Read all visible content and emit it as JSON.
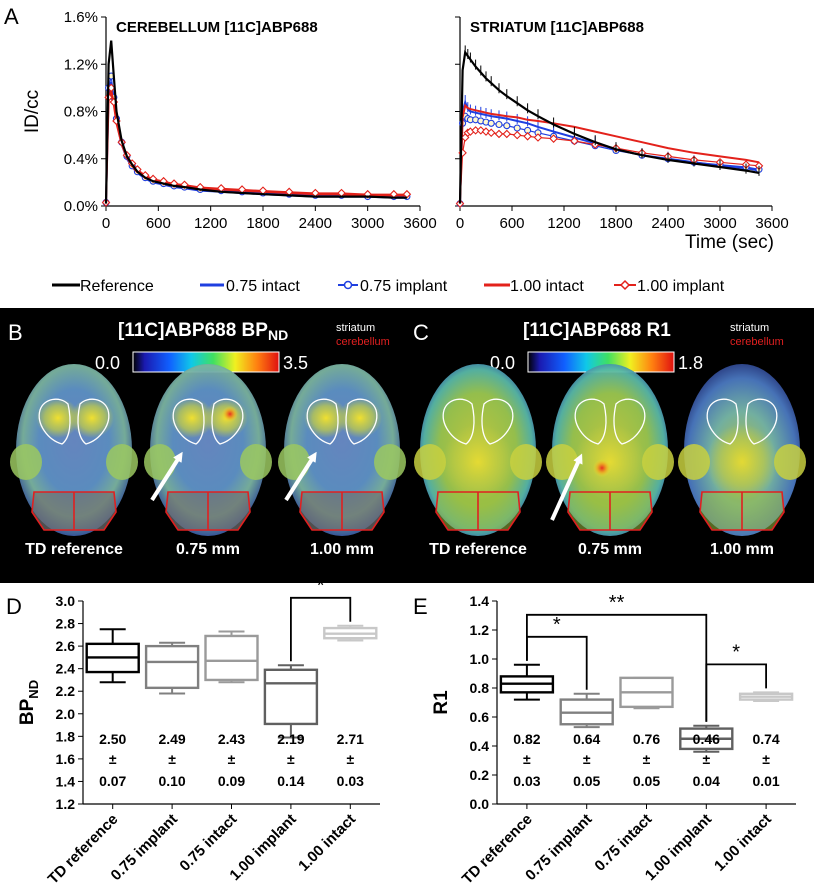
{
  "panel_labels": {
    "a": "A",
    "b": "B",
    "c": "C",
    "d": "D",
    "e": "E"
  },
  "colors": {
    "reference": "#000000",
    "intact_075": "#1f3fe0",
    "implant_075": "#1f3fe0",
    "intact_100": "#e3221b",
    "implant_100": "#e3221b",
    "striatum_outline": "#ffffff",
    "cerebellum_outline": "#e02020"
  },
  "legend": {
    "reference": "Reference",
    "intact_075": "0.75 intact",
    "implant_075": "0.75 implant",
    "intact_100": "1.00 intact",
    "implant_100": "1.00 implant"
  },
  "chart_data": [
    {
      "id": "cerebellum-tac",
      "type": "line",
      "title": "CEREBELLUM [11C]ABP688",
      "xlabel": "",
      "ylabel": "ID/cc",
      "xlim": [
        0,
        3600
      ],
      "ylim": [
        0.0,
        1.6
      ],
      "xticks": [
        "0",
        "600",
        "1200",
        "1800",
        "2400",
        "3000",
        "3600"
      ],
      "yticks": [
        "0.0%",
        "0.4%",
        "0.8%",
        "1.2%",
        "1.6%"
      ],
      "x": [
        0,
        30,
        60,
        90,
        120,
        180,
        240,
        300,
        360,
        450,
        540,
        660,
        780,
        900,
        1080,
        1320,
        1560,
        1800,
        2100,
        2400,
        2700,
        3000,
        3300,
        3450
      ],
      "series": [
        {
          "name": "Reference",
          "values": [
            0.02,
            1.2,
            1.4,
            1.1,
            0.8,
            0.55,
            0.42,
            0.35,
            0.29,
            0.24,
            0.21,
            0.19,
            0.17,
            0.16,
            0.14,
            0.12,
            0.11,
            0.1,
            0.09,
            0.08,
            0.08,
            0.08,
            0.07,
            0.07
          ]
        },
        {
          "name": "0.75 intact",
          "values": [
            0.02,
            0.95,
            1.05,
            0.9,
            0.72,
            0.52,
            0.4,
            0.33,
            0.28,
            0.23,
            0.2,
            0.18,
            0.16,
            0.15,
            0.13,
            0.12,
            0.11,
            0.1,
            0.09,
            0.08,
            0.08,
            0.08,
            0.07,
            0.07
          ]
        },
        {
          "name": "0.75 implant",
          "values": [
            0.03,
            1.0,
            1.1,
            0.92,
            0.74,
            0.54,
            0.42,
            0.34,
            0.29,
            0.24,
            0.21,
            0.19,
            0.17,
            0.16,
            0.14,
            0.13,
            0.12,
            0.11,
            0.1,
            0.09,
            0.09,
            0.08,
            0.08,
            0.08
          ]
        },
        {
          "name": "1.00 intact",
          "values": [
            0.02,
            0.9,
            0.98,
            0.86,
            0.7,
            0.52,
            0.41,
            0.34,
            0.29,
            0.25,
            0.22,
            0.2,
            0.18,
            0.17,
            0.15,
            0.14,
            0.13,
            0.12,
            0.11,
            0.1,
            0.1,
            0.09,
            0.09,
            0.09
          ]
        },
        {
          "name": "1.00 implant",
          "values": [
            0.03,
            0.92,
            1.0,
            0.88,
            0.72,
            0.54,
            0.43,
            0.36,
            0.31,
            0.26,
            0.23,
            0.21,
            0.19,
            0.18,
            0.16,
            0.15,
            0.14,
            0.13,
            0.12,
            0.11,
            0.11,
            0.1,
            0.1,
            0.1
          ]
        }
      ]
    },
    {
      "id": "striatum-tac",
      "type": "line",
      "title": "STRIATUM [11C]ABP688",
      "xlabel": "Time (sec)",
      "ylabel": "",
      "xlim": [
        0,
        3600
      ],
      "ylim": [
        0.0,
        1.6
      ],
      "xticks": [
        "0",
        "600",
        "1200",
        "1800",
        "2400",
        "3000",
        "3600"
      ],
      "x": [
        0,
        30,
        60,
        90,
        120,
        180,
        240,
        300,
        360,
        450,
        540,
        660,
        780,
        900,
        1080,
        1320,
        1560,
        1800,
        2100,
        2400,
        2700,
        3000,
        3300,
        3450
      ],
      "series": [
        {
          "name": "Reference",
          "values": [
            0.02,
            1.15,
            1.3,
            1.27,
            1.24,
            1.18,
            1.13,
            1.08,
            1.04,
            0.98,
            0.93,
            0.87,
            0.81,
            0.76,
            0.69,
            0.61,
            0.54,
            0.48,
            0.43,
            0.39,
            0.36,
            0.33,
            0.3,
            0.28
          ]
        },
        {
          "name": "0.75 intact",
          "values": [
            0.02,
            0.8,
            0.88,
            0.82,
            0.8,
            0.79,
            0.78,
            0.77,
            0.76,
            0.75,
            0.74,
            0.72,
            0.7,
            0.67,
            0.63,
            0.58,
            0.53,
            0.48,
            0.43,
            0.4,
            0.37,
            0.34,
            0.32,
            0.3
          ]
        },
        {
          "name": "0.75 implant",
          "values": [
            0.02,
            0.7,
            0.76,
            0.74,
            0.73,
            0.73,
            0.72,
            0.71,
            0.7,
            0.69,
            0.68,
            0.66,
            0.64,
            0.62,
            0.59,
            0.55,
            0.51,
            0.47,
            0.43,
            0.4,
            0.37,
            0.35,
            0.33,
            0.31
          ]
        },
        {
          "name": "1.00 intact",
          "values": [
            0.02,
            0.75,
            0.85,
            0.83,
            0.82,
            0.81,
            0.8,
            0.79,
            0.78,
            0.77,
            0.76,
            0.75,
            0.73,
            0.72,
            0.7,
            0.67,
            0.63,
            0.59,
            0.54,
            0.49,
            0.45,
            0.42,
            0.39,
            0.37
          ]
        },
        {
          "name": "1.00 implant",
          "values": [
            0.02,
            0.45,
            0.58,
            0.62,
            0.63,
            0.64,
            0.64,
            0.63,
            0.62,
            0.61,
            0.61,
            0.6,
            0.59,
            0.58,
            0.57,
            0.55,
            0.52,
            0.49,
            0.45,
            0.42,
            0.39,
            0.37,
            0.35,
            0.34
          ]
        }
      ]
    },
    {
      "id": "bpnd-box",
      "type": "box",
      "title": "",
      "ylabel": "BP",
      "ylabel_sub": "ND",
      "ylim": [
        1.2,
        3.0
      ],
      "yticks": [
        "1.2",
        "1.4",
        "1.6",
        "1.8",
        "2.0",
        "2.2",
        "2.4",
        "2.6",
        "2.8",
        "3.0"
      ],
      "categories": [
        "TD reference",
        "0.75 implant",
        "0.75 intact",
        "1.00 implant",
        "1.00  intact"
      ],
      "box_colors": [
        "#000000",
        "#808080",
        "#9a9a9a",
        "#606060",
        "#c8c8c8"
      ],
      "boxes": [
        {
          "min": 2.28,
          "q1": 2.37,
          "median": 2.5,
          "q3": 2.62,
          "max": 2.75
        },
        {
          "min": 2.18,
          "q1": 2.23,
          "median": 2.46,
          "q3": 2.6,
          "max": 2.63
        },
        {
          "min": 2.28,
          "q1": 2.3,
          "median": 2.47,
          "q3": 2.69,
          "max": 2.73
        },
        {
          "min": 1.79,
          "q1": 1.91,
          "median": 2.27,
          "q3": 2.39,
          "max": 2.43
        },
        {
          "min": 2.65,
          "q1": 2.67,
          "median": 2.71,
          "q3": 2.76,
          "max": 2.78
        }
      ],
      "means": [
        "2.50",
        "2.49",
        "2.43",
        "2.19",
        "2.71"
      ],
      "pm": [
        "±",
        "±",
        "±",
        "±",
        "±"
      ],
      "sds": [
        "0.07",
        "0.10",
        "0.09",
        "0.14",
        "0.03"
      ],
      "significance": [
        {
          "from": 3,
          "to": 4,
          "label": "*"
        }
      ]
    },
    {
      "id": "r1-box",
      "type": "box",
      "title": "",
      "ylabel": "R1",
      "ylim": [
        0.0,
        1.4
      ],
      "yticks": [
        "0.0",
        "0.2",
        "0.4",
        "0.6",
        "0.8",
        "1.0",
        "1.2",
        "1.4"
      ],
      "categories": [
        "TD reference",
        "0.75 implant",
        "0.75 intact",
        "1.00 implant",
        "1.00 intact"
      ],
      "box_colors": [
        "#000000",
        "#808080",
        "#9a9a9a",
        "#606060",
        "#c8c8c8"
      ],
      "boxes": [
        {
          "min": 0.72,
          "q1": 0.77,
          "median": 0.83,
          "q3": 0.88,
          "max": 0.96
        },
        {
          "min": 0.53,
          "q1": 0.55,
          "median": 0.63,
          "q3": 0.72,
          "max": 0.76
        },
        {
          "min": 0.66,
          "q1": 0.67,
          "median": 0.77,
          "q3": 0.87,
          "max": 0.87
        },
        {
          "min": 0.36,
          "q1": 0.38,
          "median": 0.45,
          "q3": 0.52,
          "max": 0.54
        },
        {
          "min": 0.71,
          "q1": 0.72,
          "median": 0.74,
          "q3": 0.76,
          "max": 0.77
        }
      ],
      "means": [
        "0.82",
        "0.64",
        "0.76",
        "0.46",
        "0.74"
      ],
      "pm": [
        "±",
        "±",
        "±",
        "±",
        "±"
      ],
      "sds": [
        "0.03",
        "0.05",
        "0.05",
        "0.04",
        "0.01"
      ],
      "significance": [
        {
          "from": 0,
          "to": 1,
          "label": "*",
          "level": 1
        },
        {
          "from": 0,
          "to": 3,
          "label": "**",
          "level": 2
        },
        {
          "from": 3,
          "to": 4,
          "label": "*",
          "level": 1
        }
      ]
    }
  ],
  "panel_b": {
    "title": "[11C]ABP688 BP",
    "title_sub": "ND",
    "scale_min": "0.0",
    "scale_max": "3.5",
    "legend_striatum": "striatum",
    "legend_cerebellum": "cerebellum",
    "labels": [
      "TD reference",
      "0.75 mm",
      "1.00 mm"
    ]
  },
  "panel_c": {
    "title": "[11C]ABP688 R1",
    "scale_min": "0.0",
    "scale_max": "1.8",
    "legend_striatum": "striatum",
    "legend_cerebellum": "cerebellum",
    "labels": [
      "TD reference",
      "0.75 mm",
      "1.00 mm"
    ]
  }
}
